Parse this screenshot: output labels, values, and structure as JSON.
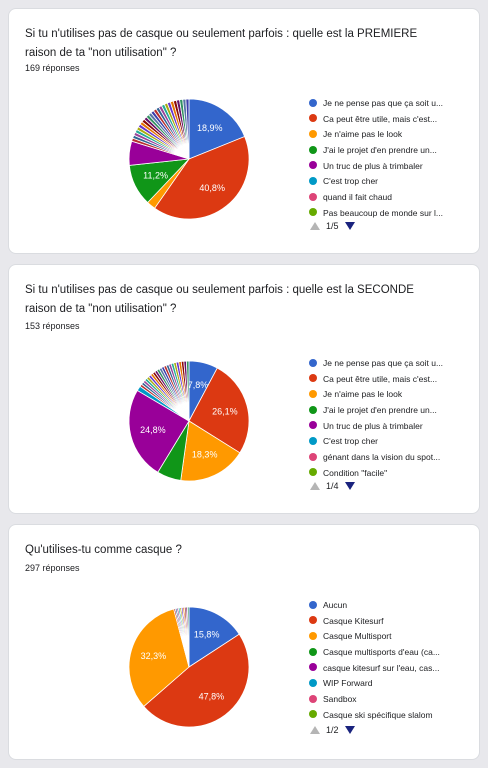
{
  "chart_data": [
    {
      "type": "pie",
      "title": "Si tu n'utilises pas de casque ou seulement parfois : quelle est la PREMIERE raison de ta \"non utilisation\" ?",
      "responses_label": "169 réponses",
      "legend": [
        "Je ne pense pas que ça soit u...",
        "Ca peut être utile, mais c'est...",
        "Je n'aime pas le look",
        "J'ai le projet d'en prendre un...",
        "Un truc de plus à trimbaler",
        "C'est trop cher",
        "quand il fait chaud",
        "Pas beaucoup de monde sur l..."
      ],
      "slices": [
        {
          "value": 18.9,
          "label": "18,9%",
          "color": "#3366cc"
        },
        {
          "value": 40.8,
          "label": "40,8%",
          "color": "#dc3912"
        },
        {
          "value": 2.4,
          "label": "",
          "color": "#ff9900"
        },
        {
          "value": 11.2,
          "label": "11,2%",
          "color": "#109618"
        },
        {
          "value": 6.5,
          "label": "",
          "color": "#990099"
        }
      ],
      "others_count": 24,
      "pager": {
        "text": "1/5"
      }
    },
    {
      "type": "pie",
      "title": "Si tu n'utilises pas de casque ou seulement parfois : quelle est la SECONDE raison de ta \"non utilisation\" ?",
      "responses_label": "153 réponses",
      "legend": [
        "Je ne pense pas que ça soit u...",
        "Ca peut être utile, mais c'est...",
        "Je n'aime pas le look",
        "J'ai le projet d'en prendre un...",
        "Un truc de plus à trimbaler",
        "C'est trop cher",
        "génant dans la vision du spot...",
        "Condition \"facile\""
      ],
      "slices": [
        {
          "value": 7.8,
          "label": "7,8%",
          "color": "#3366cc"
        },
        {
          "value": 26.1,
          "label": "26,1%",
          "color": "#dc3912"
        },
        {
          "value": 18.3,
          "label": "18,3%",
          "color": "#ff9900"
        },
        {
          "value": 6.5,
          "label": "",
          "color": "#109618"
        },
        {
          "value": 24.8,
          "label": "24,8%",
          "color": "#990099"
        },
        {
          "value": 1.3,
          "label": "",
          "color": "#0099c6"
        }
      ],
      "others_count": 22,
      "pager": {
        "text": "1/4"
      }
    },
    {
      "type": "pie",
      "title": "Qu'utilises-tu comme casque ?",
      "responses_label": "297 réponses",
      "legend": [
        "Aucun",
        "Casque Kitesurf",
        "Casque Multisport",
        "Casque multisports d'eau (ca...",
        "casque kitesurf sur l'eau, cas...",
        "WIP Forward",
        "Sandbox",
        "Casque ski spécifique slalom"
      ],
      "slices": [
        {
          "value": 15.8,
          "label": "15,8%",
          "color": "#3366cc"
        },
        {
          "value": 47.8,
          "label": "47,8%",
          "color": "#dc3912"
        },
        {
          "value": 32.3,
          "label": "32,3%",
          "color": "#ff9900"
        }
      ],
      "others_count": 10,
      "pager": {
        "text": "1/2"
      }
    }
  ],
  "colors": {
    "legend": [
      "#3366cc",
      "#dc3912",
      "#ff9900",
      "#109618",
      "#990099",
      "#0099c6",
      "#dd4477",
      "#66aa00"
    ],
    "others": [
      "#b82e2e",
      "#316395",
      "#994499",
      "#22aa99",
      "#aaaa11",
      "#6633cc",
      "#e67300",
      "#8b0707",
      "#651067",
      "#329262",
      "#5574a6",
      "#3b3eac"
    ]
  }
}
